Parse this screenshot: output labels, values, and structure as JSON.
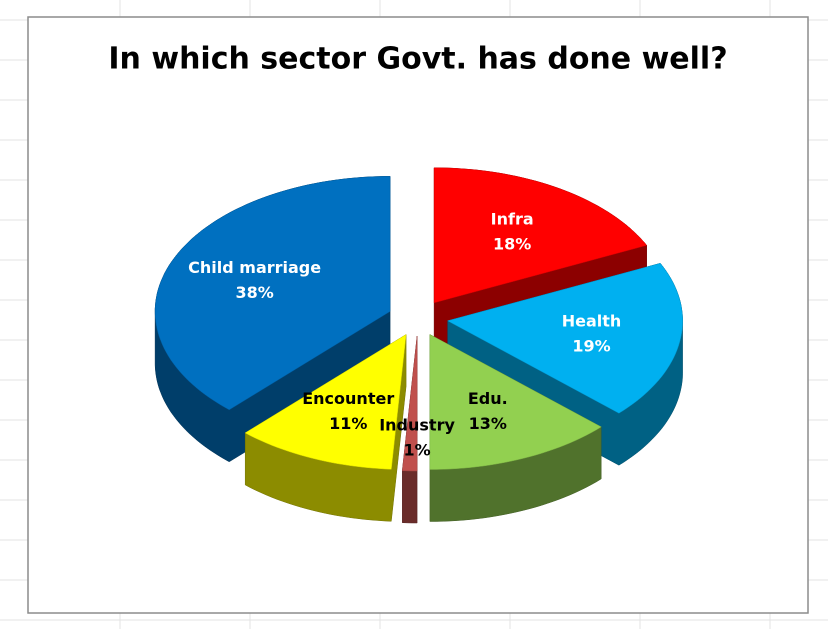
{
  "chart_data": {
    "type": "pie",
    "title": "In which sector Govt. has done well?",
    "categories": [
      "Infra",
      "Health",
      "Edu.",
      "Industry",
      "Encounter",
      "Child marriage"
    ],
    "values": [
      18,
      19,
      13,
      1,
      11,
      38
    ],
    "value_labels": [
      "18%",
      "19%",
      "13%",
      "1%",
      "11%",
      "38%"
    ],
    "colors": [
      "#ff0000",
      "#00b0f0",
      "#92d050",
      "#c0504d",
      "#ffff00",
      "#0070c0"
    ]
  }
}
